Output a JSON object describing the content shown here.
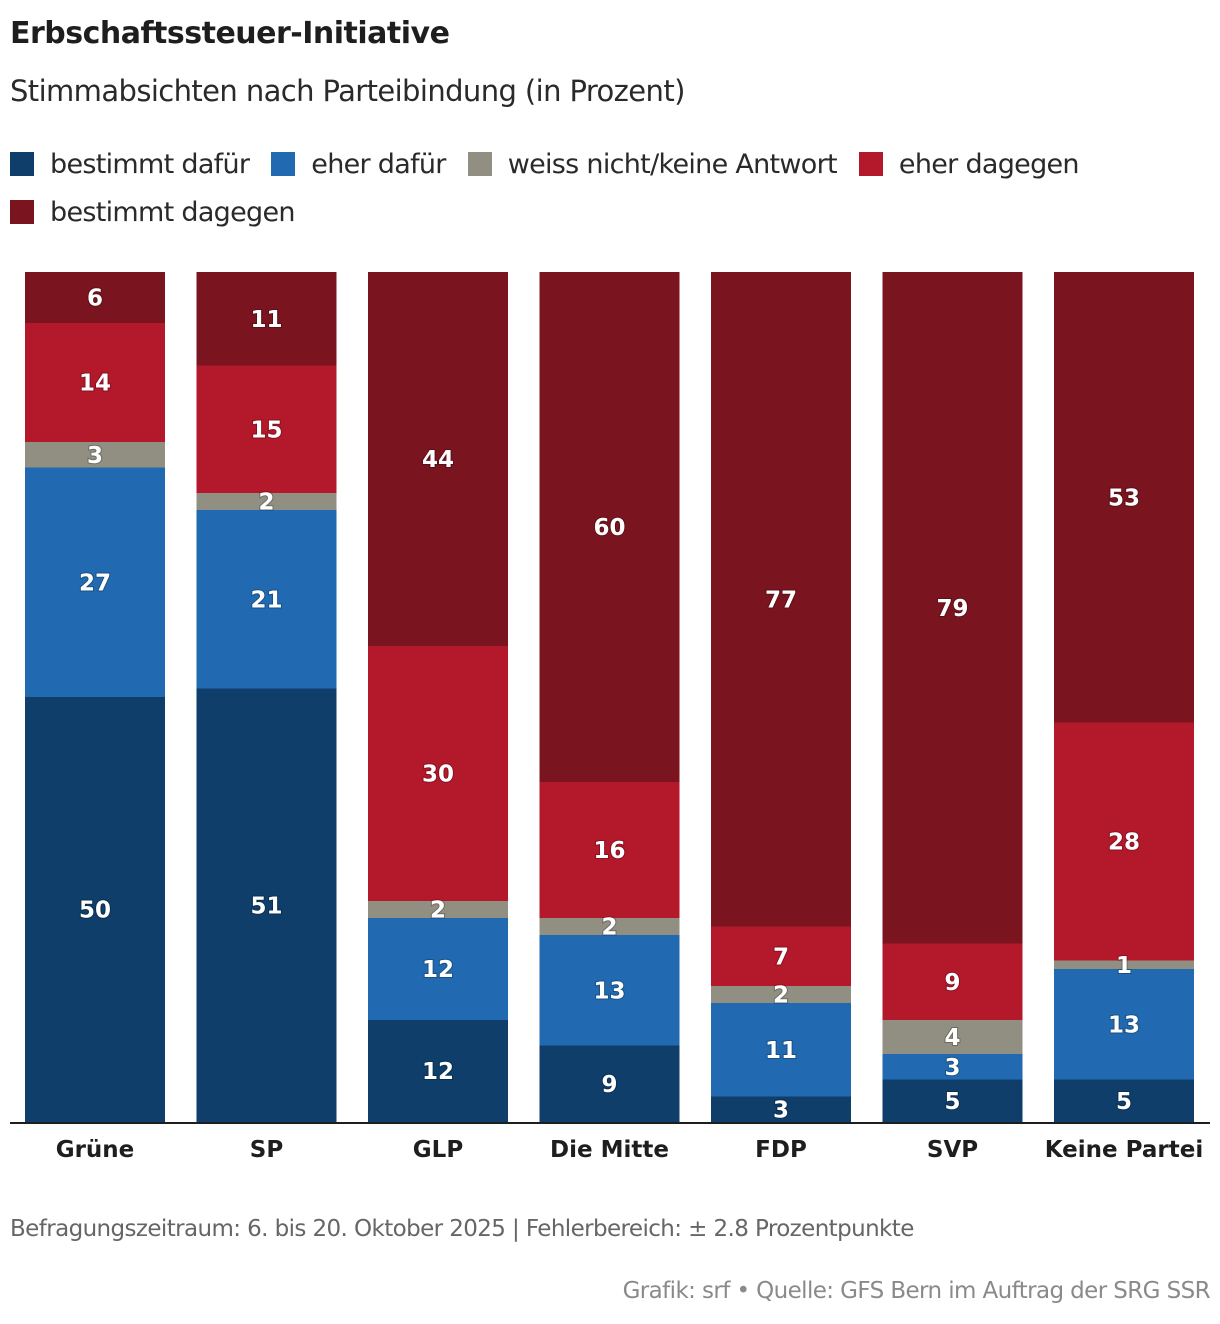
{
  "header": {
    "title": "Erbschaftssteuer-Initiative",
    "subtitle": "Stimmabsichten nach Parteibindung (in Prozent)"
  },
  "legend": [
    {
      "label": "bestimmt dafür",
      "color": "#0e3e69"
    },
    {
      "label": "eher dafür",
      "color": "#216ab1"
    },
    {
      "label": "weiss nicht/keine Antwort",
      "color": "#908f82"
    },
    {
      "label": "eher dagegen",
      "color": "#b3182b"
    },
    {
      "label": "bestimmt dagegen",
      "color": "#7a141f"
    }
  ],
  "chart_data": {
    "type": "bar",
    "stacked": true,
    "orientation": "vertical",
    "title": "Erbschaftssteuer-Initiative",
    "subtitle": "Stimmabsichten nach Parteibindung (in Prozent)",
    "xlabel": "",
    "ylabel": "",
    "ylim": [
      0,
      100
    ],
    "grid": false,
    "legend_position": "top-left",
    "categories": [
      "Grüne",
      "SP",
      "GLP",
      "Die Mitte",
      "FDP",
      "SVP",
      "Keine Partei"
    ],
    "series": [
      {
        "name": "bestimmt dafür",
        "color": "#0e3e69",
        "values": [
          50,
          51,
          12,
          9,
          3,
          5,
          5
        ]
      },
      {
        "name": "eher dafür",
        "color": "#216ab1",
        "values": [
          27,
          21,
          12,
          13,
          11,
          3,
          13
        ]
      },
      {
        "name": "weiss nicht/keine Antwort",
        "color": "#908f82",
        "values": [
          3,
          2,
          2,
          2,
          2,
          4,
          1
        ]
      },
      {
        "name": "eher dagegen",
        "color": "#b3182b",
        "values": [
          14,
          15,
          30,
          16,
          7,
          9,
          28
        ]
      },
      {
        "name": "bestimmt dagegen",
        "color": "#7a141f",
        "values": [
          6,
          11,
          44,
          60,
          77,
          79,
          53
        ]
      }
    ]
  },
  "footer": {
    "note": "Befragungszeitraum: 6. bis 20. Oktober 2025 | Fehlerbereich: ± 2.8 Prozentpunkte",
    "credit": "Grafik: srf • Quelle: GFS Bern im Auftrag der SRG SSR"
  }
}
